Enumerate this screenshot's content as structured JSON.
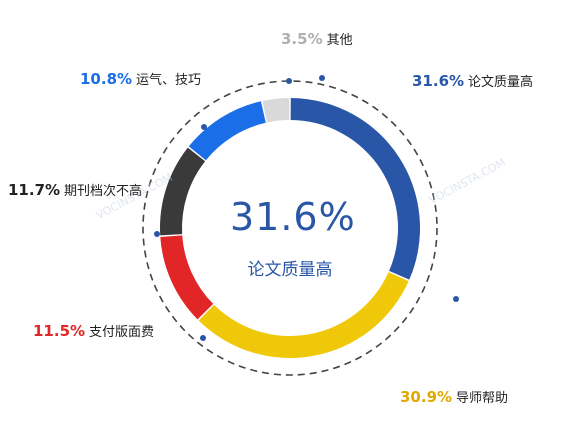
{
  "chart_data": {
    "type": "pie",
    "style": "donut",
    "slices": [
      {
        "label": "论文质量高",
        "value": 31.6,
        "pct_text": "31.6%",
        "color": "#2a56a8"
      },
      {
        "label": "导师帮助",
        "value": 30.9,
        "pct_text": "30.9%",
        "color": "#f0c80a"
      },
      {
        "label": "支付版面费",
        "value": 11.5,
        "pct_text": "11.5%",
        "color": "#e22526"
      },
      {
        "label": "期刊档次不高",
        "value": 11.7,
        "pct_text": "11.7%",
        "color": "#3a3a3a"
      },
      {
        "label": "运气、技巧",
        "value": 10.8,
        "pct_text": "10.8%",
        "color": "#1a6ee8"
      },
      {
        "label": "其他",
        "value": 3.5,
        "pct_text": "3.5%",
        "color": "#d9d9d9"
      }
    ],
    "center": {
      "value_text": "31.6%",
      "label": "论文质量高"
    },
    "watermark": "VOCINSTA.COM",
    "legend": "none"
  }
}
